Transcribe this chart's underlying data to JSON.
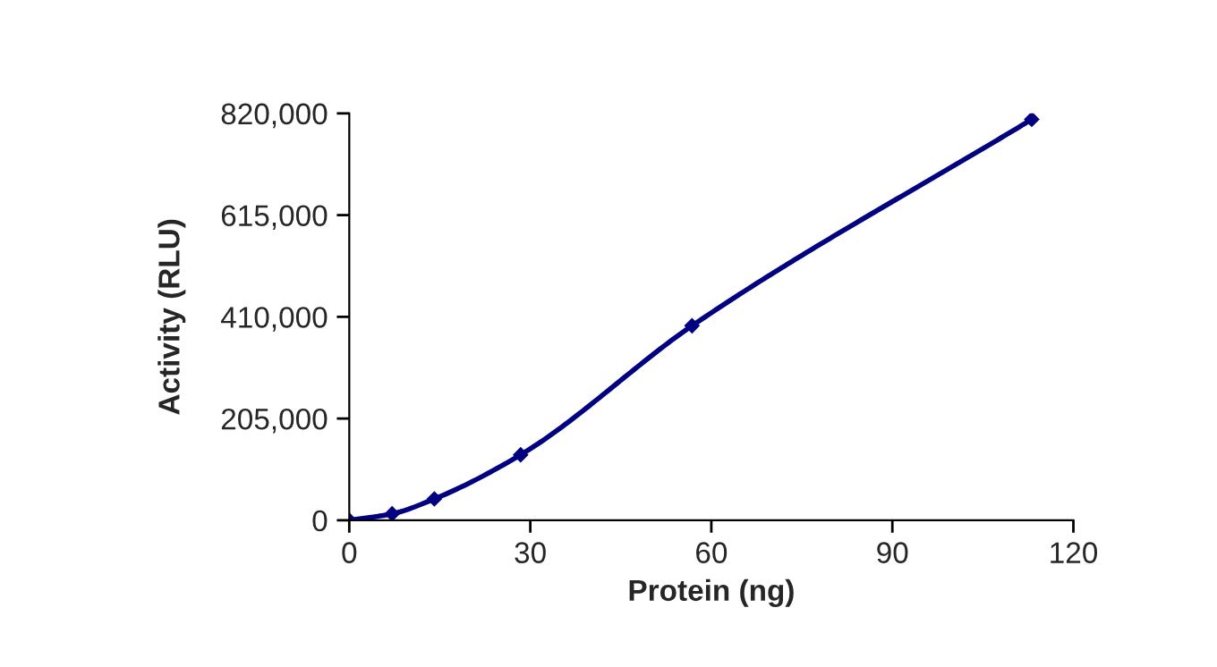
{
  "chart_data": {
    "type": "line",
    "xlabel": "Protein (ng)",
    "ylabel": "Activity (RLU)",
    "x": [
      0,
      7.1,
      14.1,
      28.4,
      56.8,
      113.1
    ],
    "series": [
      {
        "color": "#000080",
        "values": [
          0,
          13000,
          43000,
          132000,
          392000,
          808000
        ]
      }
    ],
    "xlim": [
      0,
      120
    ],
    "xticks": [
      0,
      30,
      60,
      90,
      120
    ],
    "ylim": [
      0,
      820000
    ],
    "yticks": [
      {
        "value": 0,
        "label": "0"
      },
      {
        "value": 205000,
        "label": "205,000"
      },
      {
        "value": 410000,
        "label": "410,000"
      },
      {
        "value": 615000,
        "label": "615,000"
      },
      {
        "value": 820000,
        "label": "820,000"
      }
    ],
    "marker": "diamond",
    "line_style": "solid",
    "grid": false,
    "legend": false
  }
}
